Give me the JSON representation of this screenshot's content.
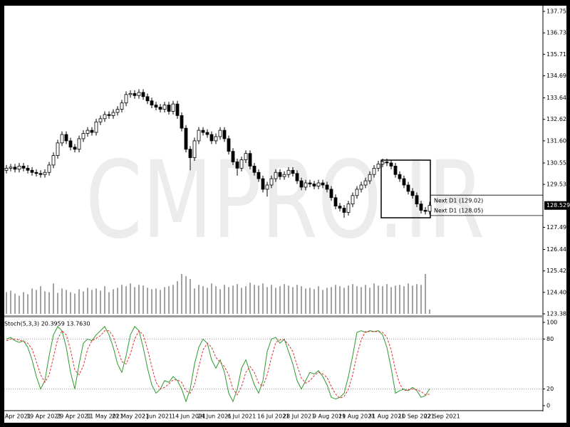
{
  "chart_data": [
    {
      "type": "candlestick",
      "watermark": "CMPRO.IR",
      "color": "#000000",
      "up_color": "#ffffff",
      "down_color": "#000000",
      "categories": [
        "Apr 2021",
        null,
        null,
        null,
        null,
        "19 Apr 2021",
        null,
        null,
        null,
        null,
        null,
        null,
        "29 Apr 2021",
        null,
        null,
        null,
        null,
        null,
        null,
        "11 May 2021",
        null,
        null,
        null,
        null,
        null,
        "21 May 2021",
        null,
        null,
        null,
        null,
        null,
        null,
        "2 Jun 2021",
        null,
        null,
        null,
        null,
        null,
        null,
        "14 Jun 2021",
        null,
        null,
        null,
        null,
        null,
        "24 Jun 2021",
        null,
        null,
        null,
        null,
        null,
        null,
        "6 Jul 2021",
        null,
        null,
        null,
        null,
        null,
        null,
        "16 Jul 2021",
        null,
        null,
        null,
        null,
        null,
        "28 Jul 2021",
        null,
        null,
        null,
        null,
        null,
        null,
        "9 Aug 2021",
        null,
        null,
        null,
        null,
        null,
        "19 Aug 2021",
        null,
        null,
        null,
        null,
        null,
        null,
        "31 Aug 2021",
        null,
        null,
        null,
        null,
        null,
        null,
        "10 Sep 2021",
        null,
        null,
        null,
        null,
        null,
        "22 Sep 2021",
        null
      ],
      "open": [
        130.2,
        130.3,
        130.35,
        130.25,
        130.4,
        130.3,
        130.2,
        130.1,
        130.05,
        130.0,
        130.1,
        130.45,
        130.9,
        131.5,
        131.9,
        131.6,
        131.3,
        131.2,
        131.7,
        131.95,
        132.1,
        132.0,
        132.5,
        132.65,
        132.85,
        132.8,
        132.95,
        133.1,
        133.4,
        133.8,
        133.85,
        133.75,
        133.9,
        133.7,
        133.5,
        133.3,
        133.2,
        133.1,
        133.3,
        133.0,
        133.35,
        132.8,
        132.2,
        131.2,
        130.8,
        131.6,
        132.1,
        132.0,
        131.9,
        131.6,
        131.8,
        132.1,
        131.7,
        131.1,
        130.6,
        130.3,
        130.7,
        131.0,
        130.4,
        130.1,
        129.8,
        129.3,
        129.5,
        129.8,
        130.1,
        129.9,
        130.0,
        130.2,
        130.05,
        129.7,
        129.4,
        129.6,
        129.55,
        129.45,
        129.6,
        129.5,
        129.3,
        128.9,
        128.5,
        128.4,
        128.2,
        128.6,
        129.0,
        129.3,
        129.5,
        129.7,
        130.0,
        130.3,
        130.5,
        130.6,
        130.55,
        130.4,
        130.0,
        129.8,
        129.5,
        129.2,
        129.0,
        128.6,
        128.3,
        128.25
      ],
      "high": [
        130.45,
        130.5,
        130.5,
        130.55,
        130.55,
        130.45,
        130.35,
        130.25,
        130.2,
        130.25,
        130.6,
        131.05,
        131.65,
        132.05,
        132.05,
        131.75,
        131.45,
        131.85,
        132.1,
        132.25,
        132.25,
        132.65,
        132.8,
        133.0,
        133.0,
        133.1,
        133.25,
        133.55,
        133.95,
        134.0,
        134.0,
        134.05,
        134.05,
        133.85,
        133.65,
        133.45,
        133.35,
        133.45,
        133.45,
        133.5,
        133.5,
        132.95,
        132.35,
        131.35,
        131.75,
        132.25,
        132.25,
        132.15,
        132.05,
        131.95,
        132.25,
        132.25,
        131.85,
        131.25,
        130.75,
        130.85,
        131.15,
        131.15,
        130.55,
        130.25,
        129.95,
        129.65,
        129.95,
        130.25,
        130.25,
        130.15,
        130.35,
        130.35,
        130.2,
        129.85,
        129.75,
        129.75,
        129.7,
        129.75,
        129.75,
        129.65,
        129.45,
        129.05,
        128.65,
        128.55,
        128.75,
        129.15,
        129.45,
        129.65,
        129.85,
        130.15,
        130.45,
        130.65,
        130.75,
        130.75,
        130.7,
        130.55,
        130.15,
        129.95,
        129.65,
        129.35,
        129.15,
        128.75,
        128.45,
        128.7
      ],
      "low": [
        130.05,
        130.15,
        130.1,
        130.1,
        130.15,
        130.05,
        129.95,
        129.9,
        129.85,
        129.85,
        129.95,
        130.3,
        130.75,
        131.35,
        131.45,
        131.15,
        131.05,
        131.05,
        131.55,
        131.8,
        131.85,
        131.85,
        132.35,
        132.5,
        132.65,
        132.65,
        132.8,
        132.95,
        133.25,
        133.65,
        133.6,
        133.6,
        133.55,
        133.35,
        133.15,
        133.05,
        132.95,
        132.95,
        132.85,
        132.85,
        132.65,
        132.05,
        131.05,
        130.2,
        130.65,
        131.45,
        131.85,
        131.75,
        131.45,
        131.45,
        131.65,
        131.55,
        130.95,
        130.45,
        129.95,
        130.15,
        130.55,
        130.25,
        129.95,
        129.65,
        129.15,
        128.95,
        129.35,
        129.65,
        129.75,
        129.75,
        129.85,
        129.9,
        129.55,
        129.25,
        129.25,
        129.4,
        129.3,
        129.3,
        129.35,
        129.15,
        128.75,
        128.35,
        128.25,
        127.95,
        128.05,
        128.45,
        128.85,
        129.15,
        129.35,
        129.55,
        129.85,
        130.15,
        130.35,
        130.4,
        130.25,
        129.85,
        129.65,
        129.35,
        129.05,
        128.85,
        128.45,
        128.15,
        128.1,
        128.1
      ],
      "close": [
        130.3,
        130.35,
        130.25,
        130.4,
        130.3,
        130.2,
        130.1,
        130.05,
        130.0,
        130.1,
        130.45,
        130.9,
        131.5,
        131.9,
        131.6,
        131.3,
        131.2,
        131.7,
        131.95,
        132.1,
        132.0,
        132.5,
        132.65,
        132.85,
        132.8,
        132.95,
        133.1,
        133.4,
        133.8,
        133.85,
        133.75,
        133.9,
        133.7,
        133.5,
        133.3,
        133.2,
        133.1,
        133.3,
        133.0,
        133.35,
        132.8,
        132.2,
        131.2,
        130.8,
        131.6,
        132.1,
        132.0,
        131.9,
        131.6,
        131.8,
        132.1,
        131.7,
        131.1,
        130.6,
        130.3,
        130.7,
        131.0,
        130.4,
        130.1,
        129.8,
        129.3,
        129.5,
        129.8,
        130.1,
        129.9,
        130.0,
        130.2,
        130.05,
        129.7,
        129.4,
        129.6,
        129.55,
        129.45,
        129.6,
        129.5,
        129.3,
        128.9,
        128.5,
        128.4,
        128.2,
        128.6,
        129.0,
        129.3,
        129.5,
        129.7,
        130.0,
        130.3,
        130.5,
        130.6,
        130.55,
        130.4,
        130.0,
        129.8,
        129.5,
        129.2,
        129.0,
        128.6,
        128.3,
        128.25,
        128.529
      ],
      "volume": [
        30,
        32,
        28,
        25,
        30,
        27,
        35,
        33,
        38,
        31,
        30,
        42,
        29,
        35,
        33,
        30,
        28,
        34,
        31,
        36,
        33,
        35,
        32,
        38,
        30,
        34,
        36,
        40,
        38,
        42,
        37,
        40,
        39,
        36,
        34,
        35,
        33,
        37,
        38,
        40,
        45,
        55,
        52,
        48,
        35,
        40,
        38,
        36,
        42,
        38,
        34,
        40,
        37,
        39,
        41,
        36,
        38,
        43,
        40,
        39,
        42,
        37,
        40,
        36,
        38,
        41,
        39,
        37,
        40,
        38,
        35,
        36,
        34,
        38,
        33,
        36,
        37,
        40,
        38,
        36,
        39,
        41,
        38,
        37,
        40,
        36,
        42,
        39,
        38,
        41,
        37,
        39,
        40,
        38,
        42,
        39,
        41,
        40,
        55,
        6
      ],
      "ylim": [
        123.38,
        137.75
      ],
      "yticks": [
        {
          "value": 137.75,
          "label": "137.750"
        },
        {
          "value": 136.73,
          "label": "136.730"
        },
        {
          "value": 135.71,
          "label": "135.710"
        },
        {
          "value": 134.69,
          "label": "134.690"
        },
        {
          "value": 133.64,
          "label": "133.640"
        },
        {
          "value": 132.62,
          "label": "132.620"
        },
        {
          "value": 131.6,
          "label": "131.600"
        },
        {
          "value": 130.55,
          "label": "130.550"
        },
        {
          "value": 129.53,
          "label": "129.530"
        },
        {
          "value": 127.49,
          "label": "127.490"
        },
        {
          "value": 126.44,
          "label": "126.440"
        },
        {
          "value": 125.42,
          "label": "125.420"
        },
        {
          "value": 124.4,
          "label": "124.400"
        },
        {
          "value": 123.38,
          "label": "123.380"
        }
      ],
      "levels": [
        {
          "label": "Next D1 (129.02)",
          "value": 129.02
        },
        {
          "label": "Next D1 (128.05)",
          "value": 128.05
        }
      ]
    },
    {
      "type": "line",
      "title": "Stoch(5,3,3) 20.3959 13.7630",
      "series": [
        {
          "name": "Main",
          "color": "#2e9a2e",
          "dashed": false,
          "values": [
            80,
            82,
            78,
            76,
            78,
            70,
            55,
            35,
            20,
            30,
            60,
            85,
            95,
            90,
            70,
            40,
            20,
            50,
            75,
            80,
            78,
            85,
            90,
            95,
            85,
            70,
            50,
            40,
            60,
            85,
            95,
            90,
            70,
            45,
            25,
            15,
            20,
            30,
            28,
            35,
            30,
            20,
            5,
            20,
            50,
            70,
            80,
            75,
            55,
            45,
            55,
            40,
            15,
            5,
            20,
            45,
            55,
            40,
            25,
            15,
            30,
            65,
            80,
            82,
            75,
            80,
            65,
            50,
            30,
            20,
            30,
            40,
            38,
            42,
            35,
            25,
            10,
            8,
            10,
            15,
            35,
            60,
            88,
            90,
            88,
            90,
            89,
            90,
            85,
            70,
            45,
            15,
            18,
            20,
            18,
            22,
            18,
            10,
            12,
            20.3959
          ]
        },
        {
          "name": "Signal",
          "color": "#e03030",
          "dashed": true,
          "values": [
            78,
            80,
            80,
            79,
            77,
            75,
            68,
            53,
            37,
            28,
            37,
            58,
            80,
            90,
            85,
            67,
            43,
            37,
            48,
            68,
            78,
            81,
            84,
            90,
            90,
            83,
            68,
            53,
            50,
            62,
            80,
            90,
            85,
            68,
            47,
            28,
            20,
            22,
            26,
            31,
            31,
            28,
            18,
            15,
            25,
            47,
            67,
            75,
            70,
            58,
            52,
            47,
            37,
            20,
            13,
            23,
            40,
            47,
            40,
            27,
            23,
            37,
            58,
            76,
            79,
            79,
            73,
            65,
            48,
            33,
            27,
            30,
            36,
            40,
            38,
            34,
            23,
            14,
            9,
            11,
            20,
            37,
            61,
            79,
            89,
            89,
            89,
            89,
            88,
            82,
            67,
            43,
            26,
            18,
            19,
            20,
            19,
            17,
            13,
            13.763
          ]
        }
      ],
      "ylim": [
        0,
        100
      ],
      "yticks": [
        0,
        20,
        80,
        100
      ],
      "levels": [
        20,
        80
      ]
    }
  ]
}
